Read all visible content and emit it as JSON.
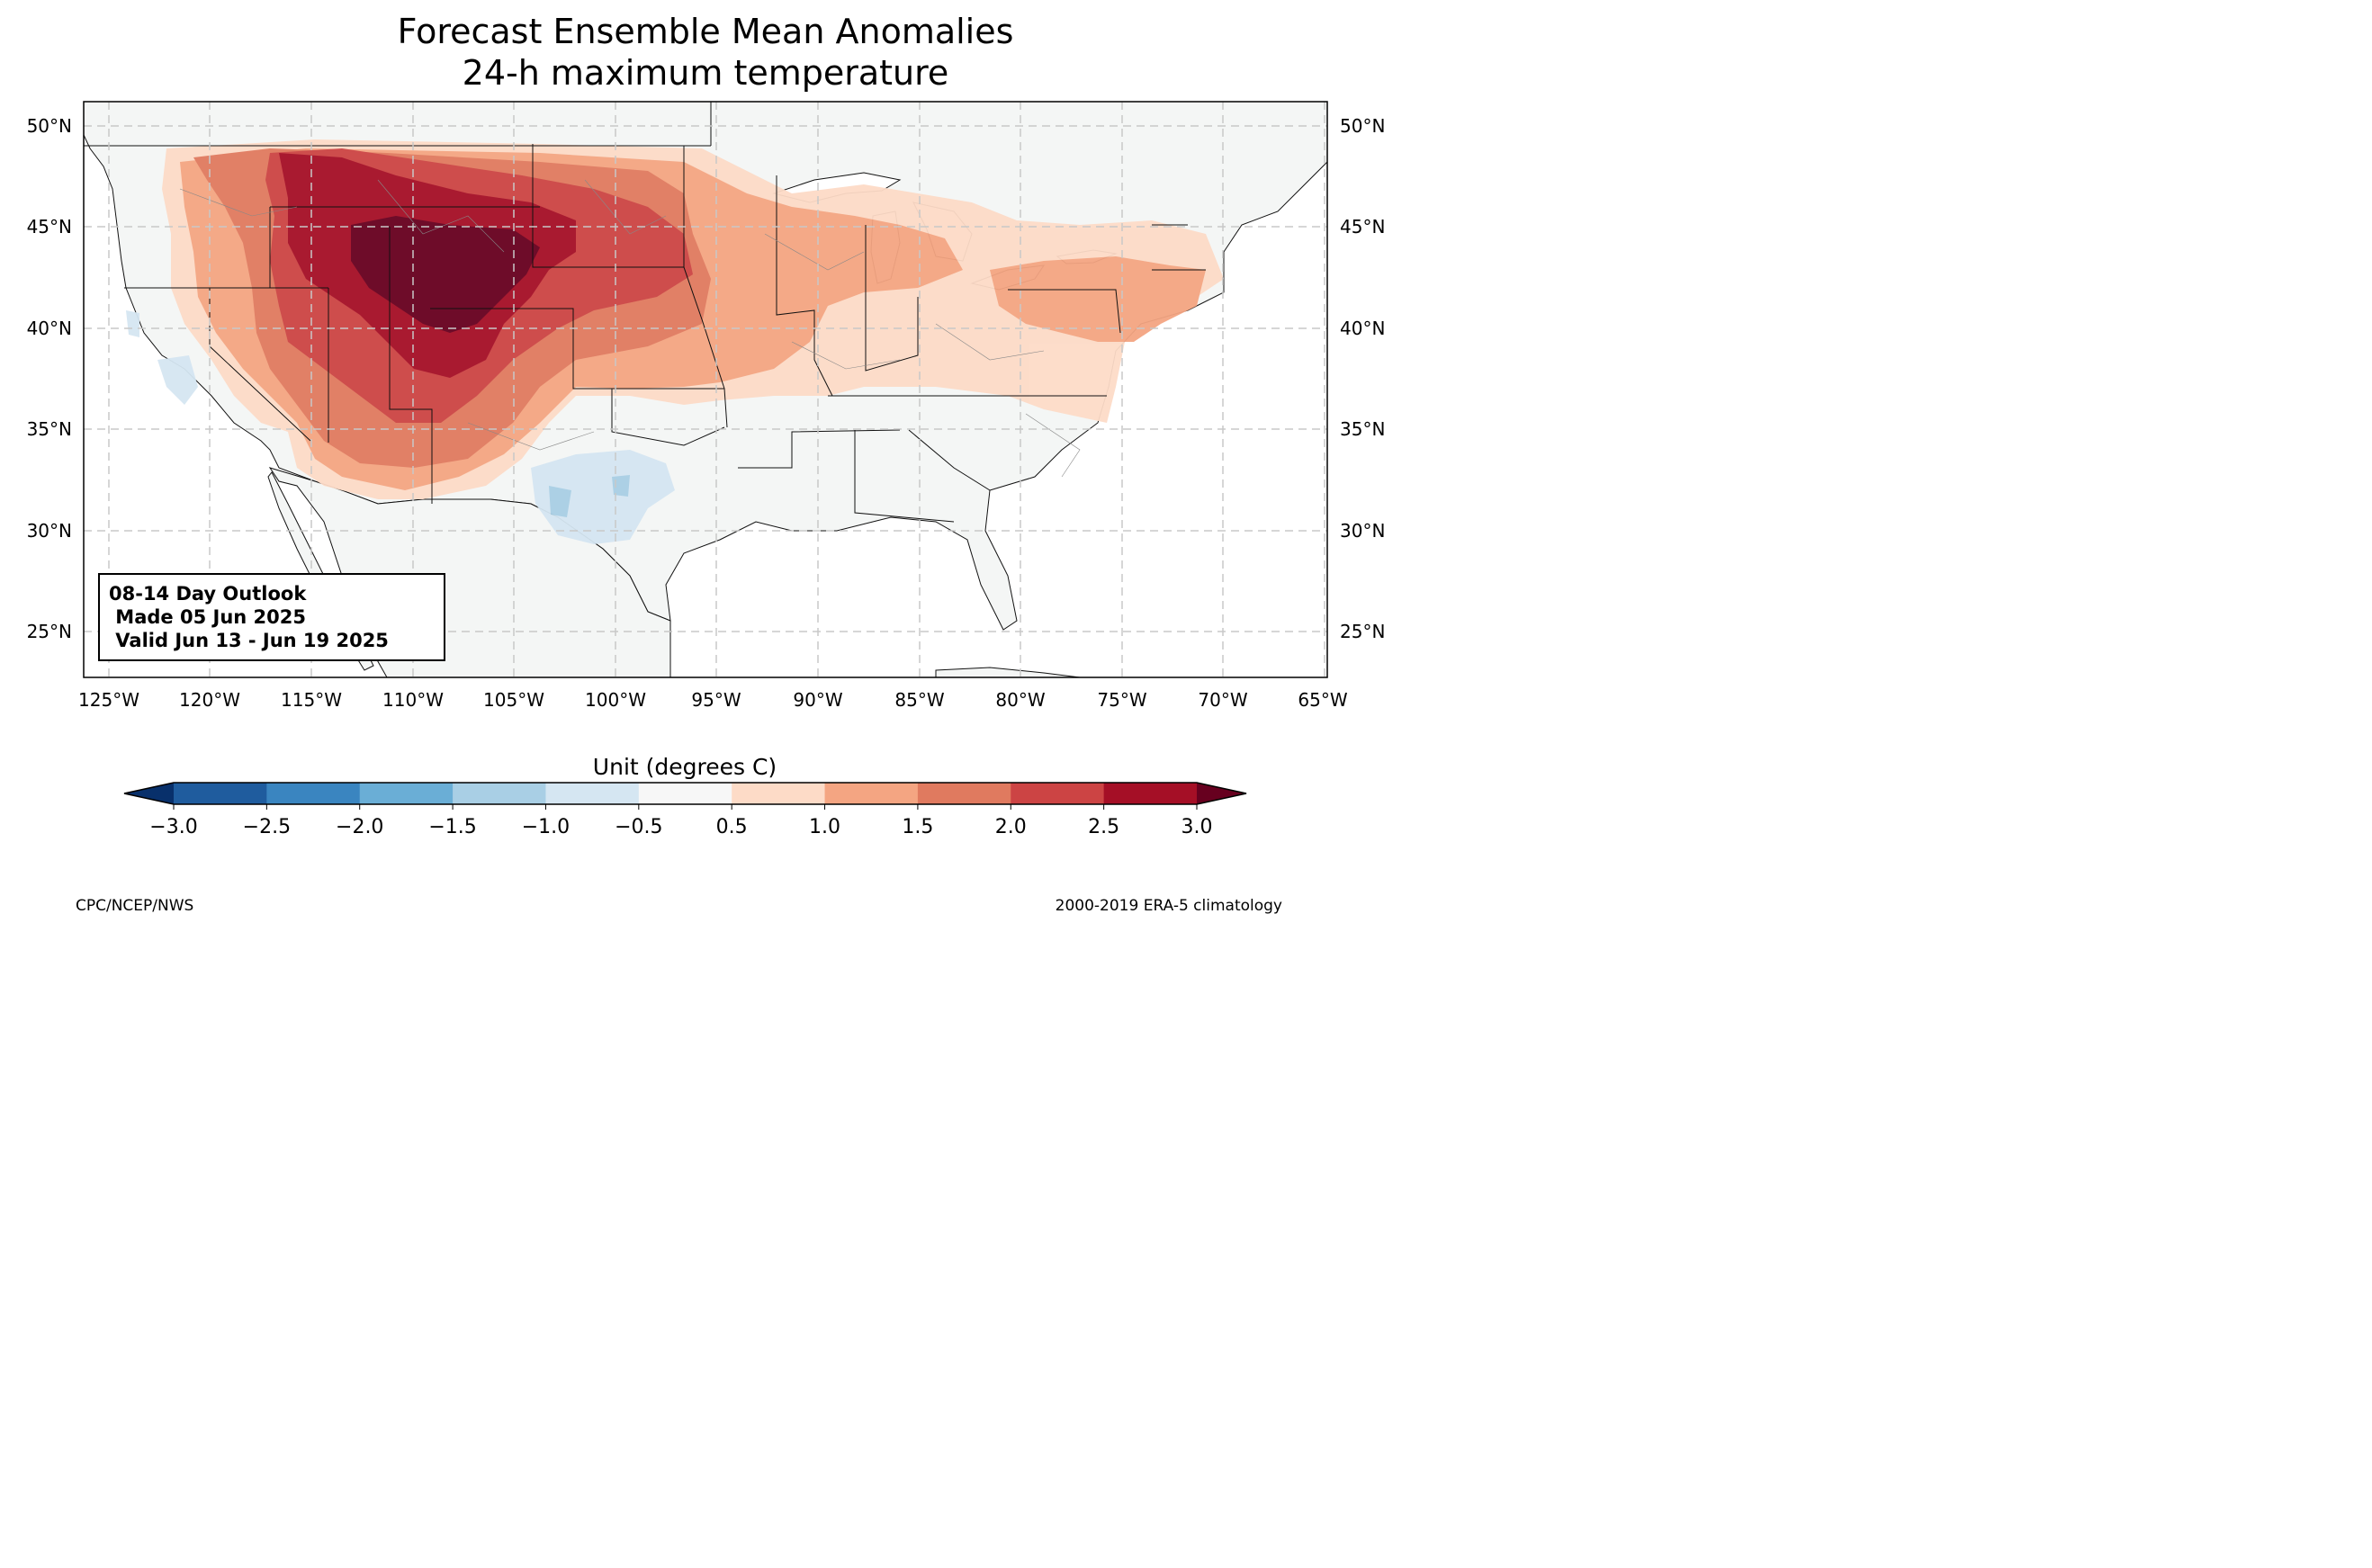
{
  "title": {
    "line1": "Forecast Ensemble Mean Anomalies",
    "line2": "24-h maximum temperature"
  },
  "info_box": {
    "line1": "08-14 Day Outlook",
    "line2": " Made 05 Jun 2025",
    "line3": " Valid Jun 13 - Jun 19 2025"
  },
  "axes": {
    "lon_labels": [
      "125°W",
      "120°W",
      "115°W",
      "110°W",
      "105°W",
      "100°W",
      "95°W",
      "90°W",
      "85°W",
      "80°W",
      "75°W",
      "70°W",
      "65°W"
    ],
    "lat_labels": [
      "50°N",
      "45°N",
      "40°N",
      "35°N",
      "30°N",
      "25°N"
    ]
  },
  "colorbar": {
    "title": "Unit (degrees C)",
    "ticks": [
      "−3.0",
      "−2.5",
      "−2.0",
      "−1.5",
      "−1.0",
      "−0.5",
      "0.5",
      "1.0",
      "1.5",
      "2.0",
      "2.5",
      "3.0"
    ],
    "colors": [
      "#08306b",
      "#1f5c9e",
      "#3a85c0",
      "#6aaed6",
      "#a9cfe5",
      "#d5e6f2",
      "#f7f7f7",
      "#fddbc7",
      "#f4a582",
      "#e07a5f",
      "#cc4444",
      "#a50f26",
      "#67001f"
    ]
  },
  "credits": {
    "left": "CPC/NCEP/NWS",
    "right": "2000-2019 ERA-5 climatology"
  }
}
